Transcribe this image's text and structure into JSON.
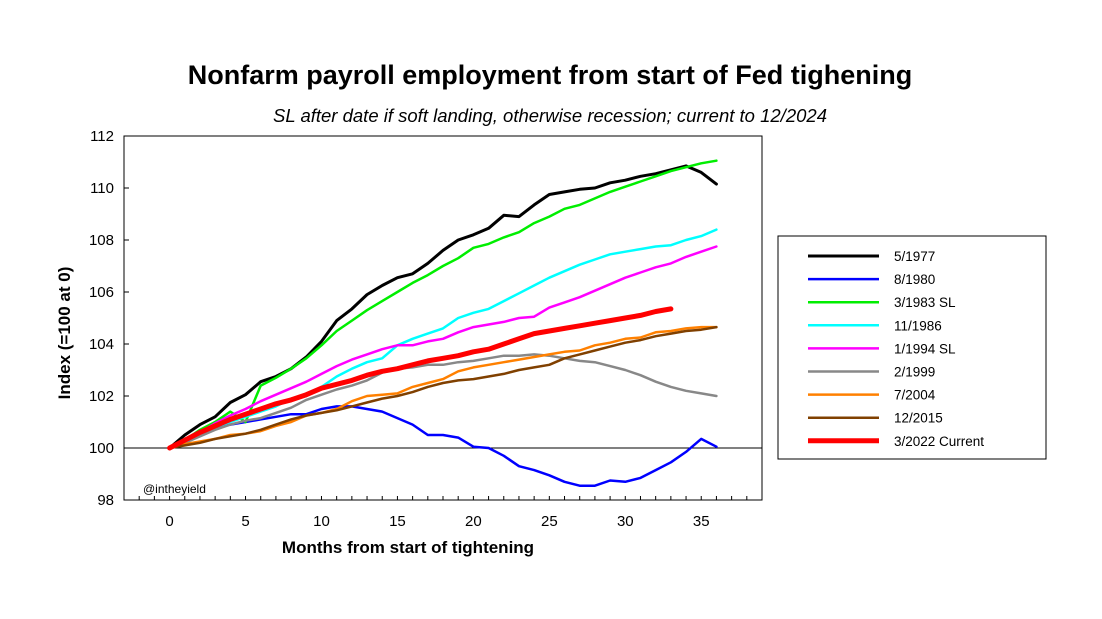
{
  "chart_data": {
    "type": "line",
    "title": "Nonfarm payroll employment from start of Fed tighening",
    "subtitle": "SL after date if soft landing, otherwise recession; current to 12/2024",
    "xlabel": "Months from start of tightening",
    "ylabel": "Index (=100 at 0)",
    "credit": "@intheyield",
    "xlim": [
      -3,
      39
    ],
    "ylim": [
      98,
      112
    ],
    "xticks": [
      0,
      5,
      10,
      15,
      20,
      25,
      30,
      35
    ],
    "yticks": [
      98,
      100,
      102,
      104,
      106,
      108,
      110,
      112
    ],
    "reference_line": 100,
    "grid": false,
    "legend_position": "right",
    "series": [
      {
        "name": "5/1977",
        "color": "#000000",
        "width": 3,
        "values": [
          100,
          100.5,
          100.9,
          101.2,
          101.75,
          102.05,
          102.55,
          102.75,
          103.05,
          103.5,
          104.1,
          104.9,
          105.35,
          105.9,
          106.25,
          106.55,
          106.7,
          107.1,
          107.6,
          108.0,
          108.2,
          108.45,
          108.95,
          108.9,
          109.35,
          109.75,
          109.85,
          109.95,
          110.0,
          110.2,
          110.3,
          110.45,
          110.55,
          110.7,
          110.85,
          110.6,
          110.15
        ]
      },
      {
        "name": "8/1980",
        "color": "#0000ff",
        "width": 2.5,
        "values": [
          100,
          100.25,
          100.5,
          100.8,
          100.9,
          101.0,
          101.1,
          101.2,
          101.3,
          101.3,
          101.5,
          101.6,
          101.6,
          101.5,
          101.4,
          101.15,
          100.9,
          100.5,
          100.5,
          100.4,
          100.05,
          100.0,
          99.7,
          99.3,
          99.15,
          98.95,
          98.7,
          98.55,
          98.55,
          98.75,
          98.7,
          98.85,
          99.15,
          99.45,
          99.85,
          100.35,
          100.05
        ]
      },
      {
        "name": "3/1983 SL",
        "color": "#00ee00",
        "width": 2.5,
        "values": [
          100,
          100.3,
          100.7,
          101.0,
          101.4,
          101.0,
          102.4,
          102.7,
          103.05,
          103.45,
          103.95,
          104.5,
          104.9,
          105.3,
          105.65,
          106.0,
          106.35,
          106.65,
          107.0,
          107.3,
          107.7,
          107.85,
          108.1,
          108.3,
          108.65,
          108.9,
          109.2,
          109.35,
          109.6,
          109.85,
          110.05,
          110.25,
          110.45,
          110.65,
          110.8,
          110.95,
          111.05
        ]
      },
      {
        "name": "11/1986",
        "color": "#00ffff",
        "width": 2.5,
        "values": [
          100,
          100.3,
          100.5,
          100.8,
          101.0,
          101.2,
          101.4,
          101.6,
          101.9,
          102.0,
          102.35,
          102.75,
          103.05,
          103.3,
          103.45,
          103.95,
          104.2,
          104.4,
          104.6,
          105.0,
          105.2,
          105.35,
          105.65,
          105.95,
          106.25,
          106.55,
          106.8,
          107.05,
          107.25,
          107.45,
          107.55,
          107.65,
          107.75,
          107.8,
          108.0,
          108.15,
          108.4
        ]
      },
      {
        "name": "1/1994 SL",
        "color": "#ff00ff",
        "width": 2.5,
        "values": [
          100,
          100.25,
          100.6,
          100.95,
          101.25,
          101.5,
          101.8,
          102.05,
          102.3,
          102.55,
          102.85,
          103.15,
          103.4,
          103.6,
          103.8,
          103.95,
          103.95,
          104.1,
          104.2,
          104.45,
          104.65,
          104.75,
          104.85,
          105.0,
          105.05,
          105.4,
          105.6,
          105.8,
          106.05,
          106.3,
          106.55,
          106.75,
          106.95,
          107.1,
          107.35,
          107.55,
          107.75
        ]
      },
      {
        "name": "2/1999",
        "color": "#888888",
        "width": 2.5,
        "values": [
          100,
          100.2,
          100.45,
          100.7,
          100.9,
          101.05,
          101.15,
          101.35,
          101.55,
          101.85,
          102.05,
          102.25,
          102.4,
          102.6,
          102.9,
          103.05,
          103.1,
          103.2,
          103.2,
          103.3,
          103.35,
          103.45,
          103.55,
          103.55,
          103.6,
          103.55,
          103.45,
          103.35,
          103.3,
          103.15,
          103.0,
          102.8,
          102.55,
          102.35,
          102.2,
          102.1,
          102.0
        ]
      },
      {
        "name": "7/2004",
        "color": "#ff8000",
        "width": 2.5,
        "values": [
          100,
          100.15,
          100.25,
          100.35,
          100.5,
          100.55,
          100.65,
          100.85,
          101.0,
          101.25,
          101.35,
          101.5,
          101.8,
          102.0,
          102.05,
          102.1,
          102.35,
          102.5,
          102.65,
          102.95,
          103.1,
          103.2,
          103.3,
          103.4,
          103.5,
          103.6,
          103.7,
          103.75,
          103.95,
          104.05,
          104.2,
          104.25,
          104.45,
          104.5,
          104.6,
          104.65,
          104.65
        ]
      },
      {
        "name": "12/2015",
        "color": "#804000",
        "width": 2.5,
        "values": [
          100,
          100.1,
          100.2,
          100.35,
          100.45,
          100.55,
          100.7,
          100.9,
          101.1,
          101.25,
          101.35,
          101.45,
          101.6,
          101.75,
          101.9,
          102.0,
          102.15,
          102.35,
          102.5,
          102.6,
          102.65,
          102.75,
          102.85,
          103.0,
          103.1,
          103.2,
          103.45,
          103.6,
          103.75,
          103.9,
          104.05,
          104.15,
          104.3,
          104.4,
          104.5,
          104.55,
          104.65
        ]
      },
      {
        "name": "3/2022 Current",
        "color": "#ff0000",
        "width": 5,
        "values": [
          100,
          100.3,
          100.6,
          100.85,
          101.1,
          101.3,
          101.5,
          101.7,
          101.85,
          102.05,
          102.3,
          102.45,
          102.6,
          102.8,
          102.95,
          103.05,
          103.2,
          103.35,
          103.45,
          103.55,
          103.7,
          103.8,
          104.0,
          104.2,
          104.4,
          104.5,
          104.6,
          104.7,
          104.8,
          104.9,
          105.0,
          105.1,
          105.25,
          105.35
        ]
      }
    ]
  }
}
